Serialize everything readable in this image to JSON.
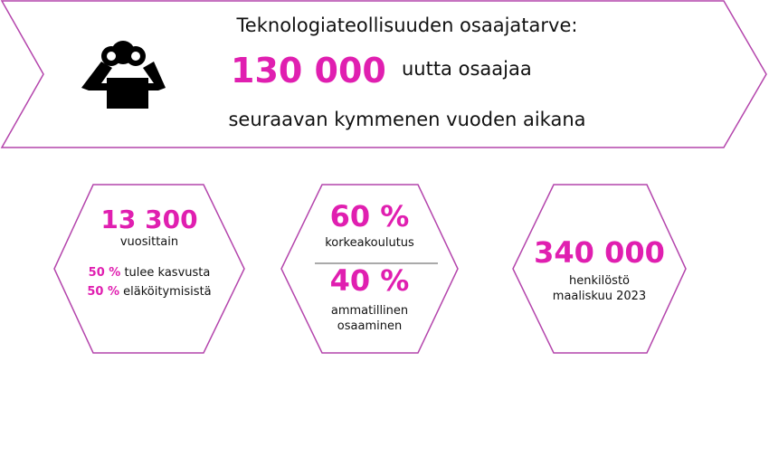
{
  "colors": {
    "accent": "#e01fb0",
    "outline": "#b445ac"
  },
  "banner": {
    "icon": "person-with-binoculars-icon",
    "title": "Teknologiateollisuuden osaajatarve:",
    "figure": "130 000",
    "figure_suffix": "uutta osaajaa",
    "subtitle": "seuraavan kymmenen vuoden aikana"
  },
  "hexagons": [
    {
      "value": "13 300",
      "label": "vuosittain",
      "lines": [
        {
          "pct": "50 %",
          "text": "tulee kasvusta"
        },
        {
          "pct": "50 %",
          "text": "eläköitymisistä"
        }
      ]
    },
    {
      "value_top": "60 %",
      "label_top": "korkeakoulutus",
      "value_bottom": "40 %",
      "label_bottom_1": "ammatillinen",
      "label_bottom_2": "osaaminen"
    },
    {
      "value": "340 000",
      "label_1": "henkilöstö",
      "label_2": "maaliskuu 2023"
    }
  ]
}
